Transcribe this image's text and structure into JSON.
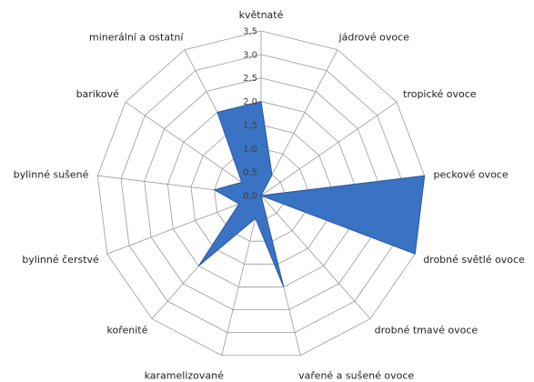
{
  "chart_data": {
    "type": "radar",
    "categories": [
      "květnaté",
      "jádrové ovoce",
      "tropické ovoce",
      "peckové ovoce",
      "drobné světlé ovoce",
      "drobné tmavé ovoce",
      "vařené a sušené ovoce",
      "karamelizované",
      "kořenité",
      "bylinné čerstvé",
      "bylinné sušené",
      "barikové",
      "minerální a ostatní"
    ],
    "series": [
      {
        "values": [
          2.0,
          0.5,
          0.0,
          3.5,
          3.5,
          0.0,
          2.0,
          0.5,
          2.0,
          0.5,
          1.0,
          0.5,
          2.0
        ],
        "color": "#3a73c4"
      }
    ],
    "rlim": [
      0,
      3.5
    ],
    "ticks": [
      "0,0",
      "0,5",
      "1,0",
      "1,5",
      "2,0",
      "2,5",
      "3,0",
      "3,5"
    ],
    "grid": true,
    "legend": "none"
  }
}
